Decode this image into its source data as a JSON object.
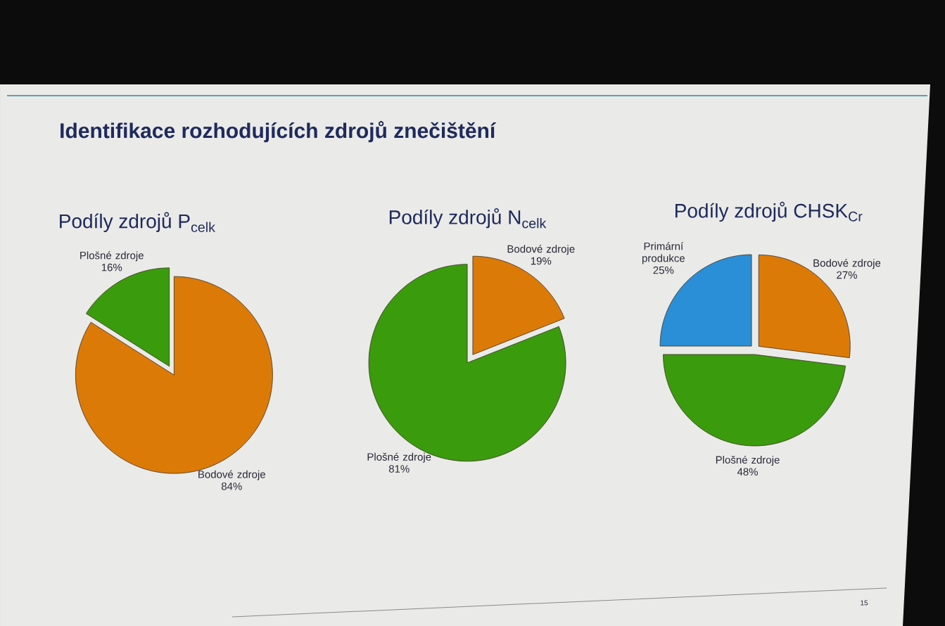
{
  "chart_data": [
    {
      "type": "other",
      "title": "Identifikace rozhodujících zdrojů znečištění",
      "annotations": [
        "15"
      ]
    },
    {
      "type": "pie",
      "title": "Podíly zdrojů P$_{celk}$",
      "categories": [
        "Bodové zdroje",
        "Plošné zdroje"
      ],
      "values": [
        84,
        16
      ],
      "colors": [
        "#dc7a08",
        "#3a9b0c"
      ],
      "value_labels": [
        "84%",
        "16%"
      ]
    },
    {
      "type": "pie",
      "title": "Podíly zdrojů N$_{celk}$",
      "categories": [
        "Bodové zdroje",
        "Plošné zdroje"
      ],
      "values": [
        19,
        81
      ],
      "colors": [
        "#dc7a08",
        "#3a9b0c"
      ],
      "value_labels": [
        "19%",
        "81%"
      ]
    },
    {
      "type": "pie",
      "title": "Podíly zdrojů CHSK$_{Cr}$",
      "categories": [
        "Bodové zdroje",
        "Plošné zdroje",
        "Primární produkce"
      ],
      "values": [
        27,
        48,
        25
      ],
      "colors": [
        "#dc7a08",
        "#3a9b0c",
        "#2a8fd6"
      ],
      "value_labels": [
        "27%",
        "48%",
        "25%"
      ]
    }
  ]
}
